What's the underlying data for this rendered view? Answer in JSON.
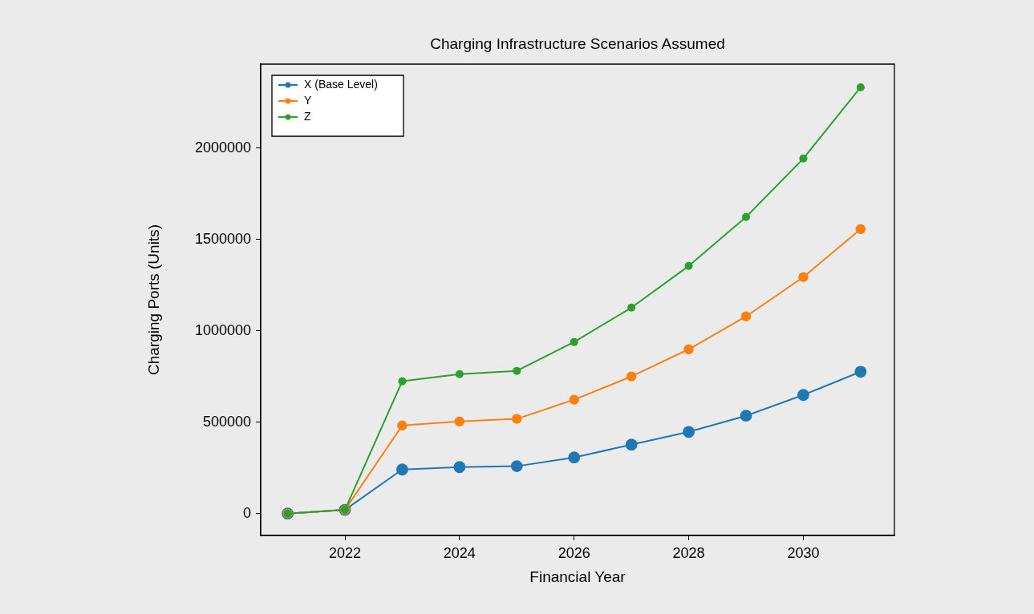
{
  "chart_data": {
    "type": "line",
    "title": "Charging Infrastructure Scenarios Assumed",
    "xlabel": "Financial Year",
    "ylabel": "Charging Ports (Units)",
    "x": [
      2021,
      2022,
      2023,
      2024,
      2025,
      2026,
      2027,
      2028,
      2029,
      2030,
      2031
    ],
    "series": [
      {
        "name": "X (Base Level)",
        "color": "#1f77b4",
        "values": [
          0,
          20000,
          241000,
          254000,
          259000,
          307000,
          377000,
          447000,
          535000,
          649000,
          776000
        ]
      },
      {
        "name": "Y",
        "color": "#ff7f0e",
        "values": [
          0,
          20000,
          482000,
          504000,
          518000,
          623000,
          750000,
          899000,
          1079000,
          1294000,
          1557000
        ]
      },
      {
        "name": "Z",
        "color": "#2ca02c",
        "values": [
          0,
          20000,
          724000,
          763000,
          781000,
          939000,
          1127000,
          1355000,
          1623000,
          1943000,
          2333000
        ]
      }
    ],
    "xlim": [
      2020.53,
      2031.59
    ],
    "xticks": [
      2022,
      2024,
      2026,
      2028,
      2030
    ],
    "ylim": [
      -120000,
      2460000
    ],
    "yticks": [
      0,
      500000,
      1000000,
      1500000,
      2000000
    ],
    "legend": "top left",
    "marker": "circle",
    "line_style": "solid",
    "grid": false
  }
}
